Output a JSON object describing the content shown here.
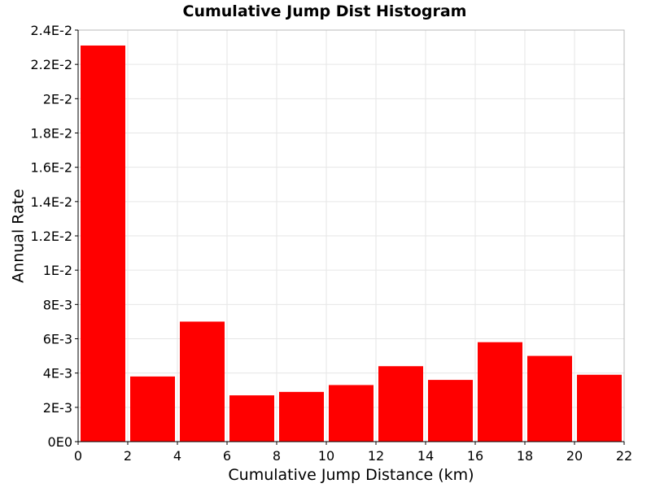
{
  "chart_data": {
    "type": "bar",
    "title": "Cumulative Jump Dist Histogram",
    "xlabel": "Cumulative Jump Distance (km)",
    "ylabel": "Annual Rate",
    "xlim": [
      0,
      22
    ],
    "ylim": [
      0,
      0.024
    ],
    "x_ticks": [
      0,
      2,
      4,
      6,
      8,
      10,
      12,
      14,
      16,
      18,
      20,
      22
    ],
    "x_tick_labels": [
      "0",
      "2",
      "4",
      "6",
      "8",
      "10",
      "12",
      "14",
      "16",
      "18",
      "20",
      "22"
    ],
    "y_ticks": [
      0,
      0.002,
      0.004,
      0.006,
      0.008,
      0.01,
      0.012,
      0.014,
      0.016,
      0.018,
      0.02,
      0.022,
      0.024
    ],
    "y_tick_labels": [
      "0E0",
      "2E-3",
      "4E-3",
      "6E-3",
      "8E-3",
      "1E-2",
      "1.2E-2",
      "1.4E-2",
      "1.6E-2",
      "1.8E-2",
      "2E-2",
      "2.2E-2",
      "2.4E-2"
    ],
    "bin_width": 2,
    "bins": [
      {
        "x_start": 0,
        "x_end": 2,
        "value": 0.0231
      },
      {
        "x_start": 2,
        "x_end": 4,
        "value": 0.0038
      },
      {
        "x_start": 4,
        "x_end": 6,
        "value": 0.007
      },
      {
        "x_start": 6,
        "x_end": 8,
        "value": 0.0027
      },
      {
        "x_start": 8,
        "x_end": 10,
        "value": 0.0029
      },
      {
        "x_start": 10,
        "x_end": 12,
        "value": 0.0033
      },
      {
        "x_start": 12,
        "x_end": 14,
        "value": 0.0044
      },
      {
        "x_start": 14,
        "x_end": 16,
        "value": 0.0036
      },
      {
        "x_start": 16,
        "x_end": 18,
        "value": 0.0058
      },
      {
        "x_start": 18,
        "x_end": 20,
        "value": 0.005
      },
      {
        "x_start": 20,
        "x_end": 22,
        "value": 0.0039
      }
    ],
    "bar_color": "#ff0000",
    "grid": true,
    "legend": false
  }
}
